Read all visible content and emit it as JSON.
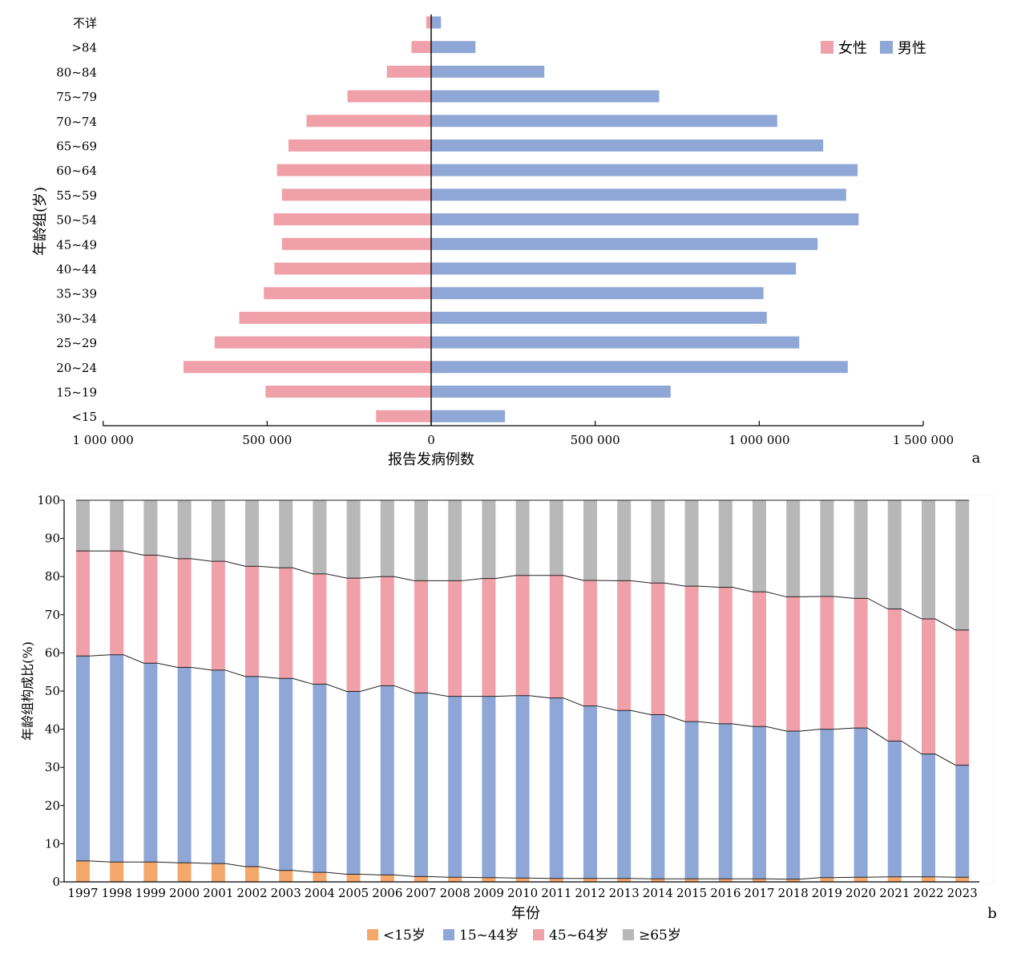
{
  "colors": {
    "female": "#f0a0a8",
    "male": "#8fa7d6",
    "under15": "#f4a86c",
    "age15_44": "#8fa7d6",
    "age45_64": "#f0a0a8",
    "over65": "#b8b8b8"
  },
  "chart_data": [
    {
      "type": "bar",
      "orientation": "horizontal",
      "panel_label": "a",
      "xlabel": "报告发病例数",
      "ylabel": "年龄组(岁)",
      "xlim": [
        -1000000,
        1500000
      ],
      "x_ticks": [
        -1000000,
        -500000,
        0,
        500000,
        1000000,
        1500000
      ],
      "x_tick_labels": [
        "1 000 000",
        "500 000",
        "0",
        "500 000",
        "1 000 000",
        "1 500 000"
      ],
      "categories": [
        "不详",
        ">84",
        "80~84",
        "75~79",
        "70~74",
        "65~69",
        "60~64",
        "55~59",
        "50~54",
        "45~49",
        "40~44",
        "35~39",
        "30~34",
        "25~29",
        "20~24",
        "15~19",
        "<15"
      ],
      "series": [
        {
          "name": "女性",
          "values": [
            15000,
            60000,
            135000,
            255000,
            380000,
            435000,
            470000,
            455000,
            480000,
            455000,
            478000,
            510000,
            585000,
            660000,
            755000,
            505000,
            168000
          ]
        },
        {
          "name": "男性",
          "values": [
            30000,
            135000,
            345000,
            695000,
            1055000,
            1195000,
            1300000,
            1265000,
            1303000,
            1178000,
            1112000,
            1013000,
            1023000,
            1122000,
            1270000,
            730000,
            225000
          ]
        }
      ],
      "legend_position": "top-right"
    },
    {
      "type": "bar",
      "stacked": true,
      "panel_label": "b",
      "xlabel": "年份",
      "ylabel": "年龄组构成比(%)",
      "ylim": [
        0,
        100
      ],
      "y_ticks": [
        0,
        10,
        20,
        30,
        40,
        50,
        60,
        70,
        80,
        90,
        100
      ],
      "categories": [
        "1997",
        "1998",
        "1999",
        "2000",
        "2001",
        "2002",
        "2003",
        "2004",
        "2005",
        "2006",
        "2007",
        "2008",
        "2009",
        "2010",
        "2011",
        "2012",
        "2013",
        "2014",
        "2015",
        "2016",
        "2017",
        "2018",
        "2019",
        "2020",
        "2021",
        "2022",
        "2023"
      ],
      "series": [
        {
          "name": "<15岁",
          "values": [
            5.5,
            5.2,
            5.2,
            5.0,
            4.8,
            4.0,
            3.0,
            2.5,
            2.0,
            1.8,
            1.4,
            1.2,
            1.1,
            1.0,
            0.9,
            0.9,
            0.9,
            0.8,
            0.8,
            0.8,
            0.8,
            0.7,
            1.1,
            1.2,
            1.3,
            1.3,
            1.2
          ]
        },
        {
          "name": "15~44岁",
          "values": [
            53.7,
            54.3,
            52.1,
            51.2,
            50.7,
            49.8,
            50.3,
            49.3,
            47.9,
            49.6,
            48.1,
            47.4,
            47.5,
            47.8,
            47.3,
            45.2,
            44.0,
            43.0,
            41.2,
            40.6,
            39.9,
            38.8,
            38.9,
            39.1,
            35.6,
            32.2,
            29.4
          ]
        },
        {
          "name": "45~64岁",
          "values": [
            27.5,
            27.2,
            28.3,
            28.5,
            28.5,
            28.9,
            29.0,
            28.9,
            29.7,
            28.6,
            29.4,
            30.3,
            30.9,
            31.5,
            32.1,
            32.9,
            34.0,
            34.5,
            35.5,
            35.8,
            35.3,
            35.2,
            34.8,
            34.0,
            34.6,
            35.4,
            35.4
          ]
        },
        {
          "name": "≥65岁",
          "values": [
            13.3,
            13.3,
            14.4,
            15.3,
            16.0,
            17.3,
            17.7,
            19.3,
            20.4,
            20.0,
            21.1,
            21.1,
            20.5,
            19.7,
            19.7,
            21.0,
            21.1,
            21.7,
            22.5,
            22.8,
            24.0,
            25.3,
            25.2,
            25.7,
            28.5,
            31.1,
            34.0
          ]
        }
      ],
      "legend_position": "bottom"
    }
  ]
}
